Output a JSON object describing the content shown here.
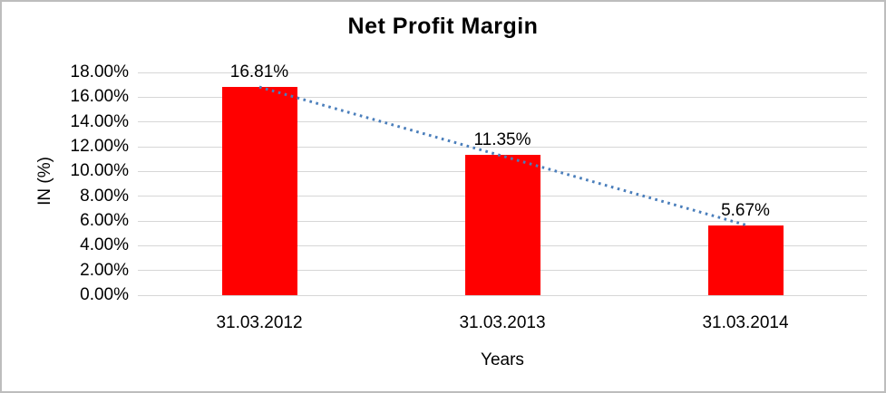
{
  "chart_data": {
    "type": "bar",
    "title": "Net Profit Margin",
    "xlabel": "Years",
    "ylabel": "IN (%)",
    "categories": [
      "31.03.2012",
      "31.03.2013",
      "31.03.2014"
    ],
    "values": [
      16.81,
      11.35,
      5.67
    ],
    "data_labels": [
      "16.81%",
      "11.35%",
      "5.67%"
    ],
    "ylim": [
      0,
      18
    ],
    "ytick_step": 2,
    "ytick_labels": [
      "0.00%",
      "2.00%",
      "4.00%",
      "6.00%",
      "8.00%",
      "10.00%",
      "12.00%",
      "14.00%",
      "16.00%",
      "18.00%"
    ],
    "grid": true,
    "legend": "none",
    "bar_color": "#ff0000",
    "gridline_color": "#d6d6d6",
    "text_color": "#000000",
    "frame_border_color": "#bdbdbd",
    "trendline": {
      "type": "linear",
      "style": "dotted",
      "color": "#4a7ebb",
      "start_value": 16.82,
      "end_value": 5.68
    }
  }
}
